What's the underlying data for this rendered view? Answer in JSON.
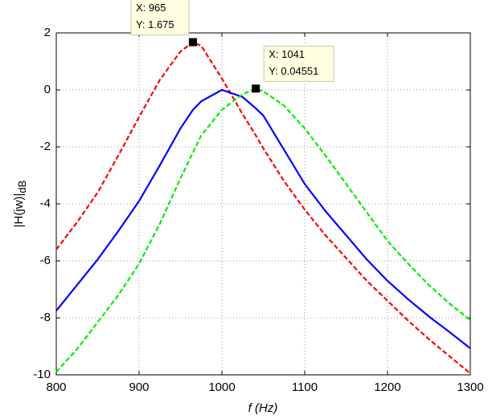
{
  "chart_data": {
    "type": "line",
    "xlabel": "f (Hz)",
    "ylabel": "|H(jw)|",
    "ylabel_subscript": "dB",
    "x": [
      800,
      825,
      850,
      875,
      900,
      925,
      950,
      965,
      975,
      1000,
      1025,
      1041,
      1050,
      1075,
      1100,
      1125,
      1150,
      1175,
      1200,
      1225,
      1250,
      1275,
      1300
    ],
    "series": [
      {
        "color": "#ff0000",
        "dash": true,
        "values": [
          -5.6,
          -4.65,
          -3.6,
          -2.3,
          -0.95,
          0.35,
          1.35,
          1.675,
          1.55,
          0.4,
          -0.85,
          -1.6,
          -2.05,
          -3.2,
          -4.2,
          -5.1,
          -5.9,
          -6.7,
          -7.4,
          -8.1,
          -8.75,
          -9.35,
          -9.95
        ]
      },
      {
        "color": "#0000ff",
        "dash": false,
        "values": [
          -7.75,
          -6.85,
          -5.95,
          -4.95,
          -3.9,
          -2.65,
          -1.35,
          -0.7,
          -0.4,
          0,
          -0.25,
          -0.65,
          -0.9,
          -2.1,
          -3.3,
          -4.25,
          -5.1,
          -5.95,
          -6.7,
          -7.35,
          -7.95,
          -8.5,
          -9.07
        ]
      },
      {
        "color": "#00ee00",
        "dash": true,
        "values": [
          -9.9,
          -9.1,
          -8.15,
          -7.2,
          -6.1,
          -4.7,
          -3.1,
          -2.2,
          -1.6,
          -0.7,
          -0.15,
          0.0455,
          -0.05,
          -0.55,
          -1.35,
          -2.3,
          -3.3,
          -4.3,
          -5.3,
          -6.1,
          -6.85,
          -7.5,
          -8.08
        ]
      }
    ],
    "xlim": [
      800,
      1300
    ],
    "xticks": [
      800,
      900,
      1000,
      1100,
      1200,
      1300
    ],
    "ylim": [
      -10,
      2
    ],
    "yticks": [
      -10,
      -8,
      -6,
      -4,
      -2,
      0,
      2
    ],
    "grid": true,
    "annotations": [
      {
        "x": 965,
        "y": 1.675,
        "lines": [
          "X: 965",
          "Y: 1.675"
        ]
      },
      {
        "x": 1041,
        "y": 0.04551,
        "lines": [
          "X: 1041",
          "Y: 0.04551"
        ]
      }
    ]
  }
}
